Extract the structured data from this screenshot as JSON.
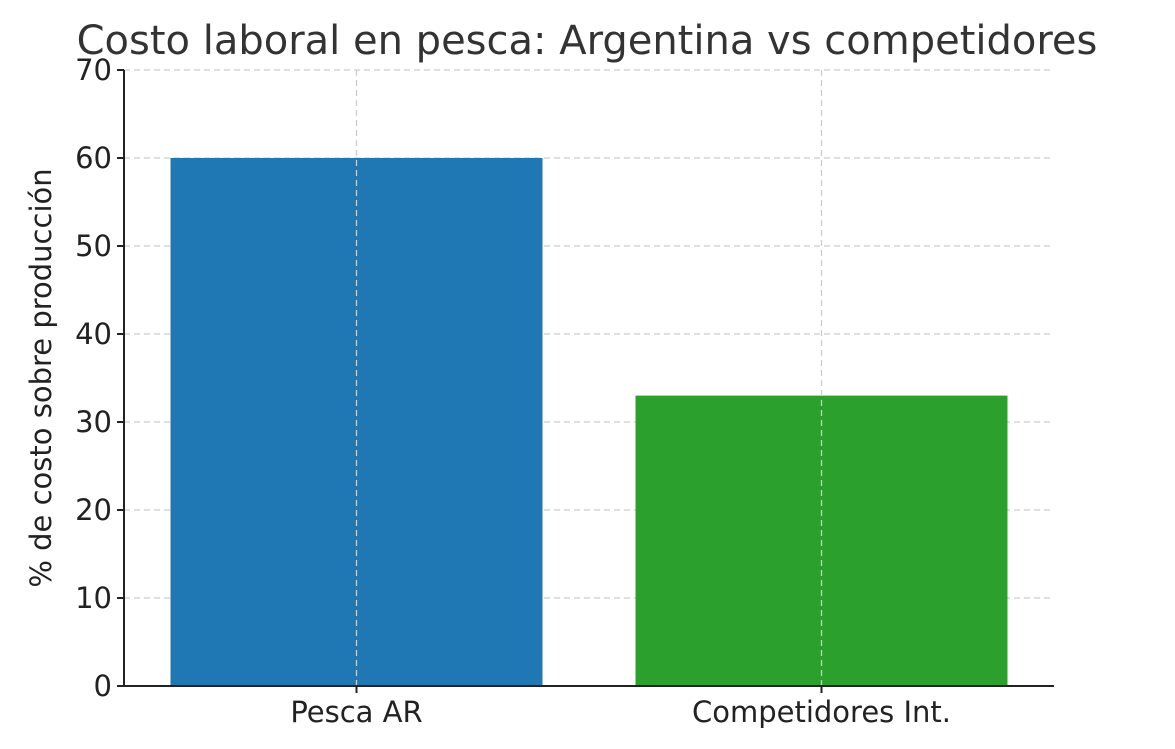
{
  "chart_data": {
    "type": "bar",
    "title": "Costo laboral en pesca: Argentina vs competidores",
    "xlabel": "",
    "ylabel": "% de costo sobre producción",
    "categories": [
      "Pesca AR",
      "Competidores Int."
    ],
    "values": [
      60,
      33
    ],
    "bar_colors": [
      "#1f77b4",
      "#2ca02c"
    ],
    "ylim": [
      0,
      70
    ],
    "yticks": [
      0,
      10,
      20,
      30,
      40,
      50,
      60,
      70
    ],
    "grid": true
  }
}
